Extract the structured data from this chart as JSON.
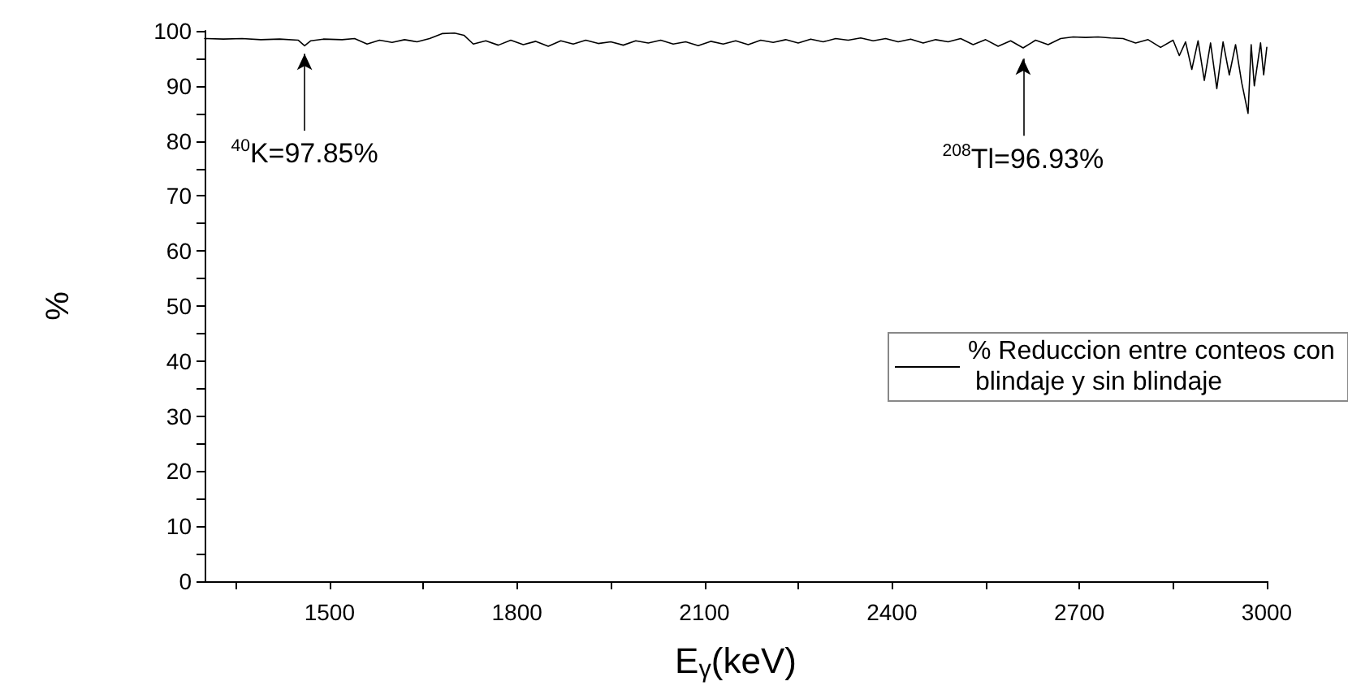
{
  "chart_data": {
    "type": "line",
    "xlabel": "E$_{γ}$(keV)",
    "ylabel": "%",
    "annotations": [
      {
        "text": "$^{40}$K=97.85%",
        "x": 1460,
        "y": 97.85
      },
      {
        "text": "$^{208}$Tl=96.93%",
        "x": 2610,
        "y": 96.93
      }
    ],
    "x": [
      1300,
      1330,
      1360,
      1390,
      1420,
      1450,
      1460,
      1470,
      1490,
      1520,
      1540,
      1560,
      1580,
      1600,
      1620,
      1640,
      1660,
      1680,
      1700,
      1715,
      1730,
      1750,
      1770,
      1790,
      1810,
      1830,
      1850,
      1870,
      1890,
      1910,
      1930,
      1950,
      1970,
      1990,
      2010,
      2030,
      2050,
      2070,
      2090,
      2110,
      2130,
      2150,
      2170,
      2190,
      2210,
      2230,
      2250,
      2270,
      2290,
      2310,
      2330,
      2350,
      2370,
      2390,
      2410,
      2430,
      2450,
      2470,
      2490,
      2510,
      2530,
      2550,
      2570,
      2590,
      2610,
      2630,
      2650,
      2670,
      2690,
      2710,
      2730,
      2750,
      2770,
      2790,
      2810,
      2830,
      2850,
      2860,
      2870,
      2880,
      2890,
      2900,
      2910,
      2920,
      2930,
      2940,
      2950,
      2960,
      2970,
      2975,
      2980,
      2990,
      2995,
      3000
    ],
    "series": [
      {
        "name": "% Reduccion entre conteos con blindaje y sin blindaje",
        "color": "#000000",
        "values": [
          98.6,
          98.5,
          98.6,
          98.4,
          98.5,
          98.3,
          97.3,
          98.2,
          98.5,
          98.4,
          98.6,
          97.6,
          98.3,
          97.9,
          98.4,
          98.0,
          98.6,
          99.5,
          99.6,
          99.2,
          97.6,
          98.2,
          97.4,
          98.3,
          97.5,
          98.1,
          97.2,
          98.2,
          97.6,
          98.3,
          97.7,
          98.0,
          97.4,
          98.2,
          97.8,
          98.3,
          97.6,
          98.0,
          97.3,
          98.1,
          97.6,
          98.2,
          97.5,
          98.3,
          97.9,
          98.4,
          97.8,
          98.5,
          98.0,
          98.6,
          98.3,
          98.7,
          98.2,
          98.6,
          98.0,
          98.5,
          97.8,
          98.4,
          98.0,
          98.6,
          97.5,
          98.4,
          97.2,
          98.2,
          96.9,
          98.3,
          97.5,
          98.6,
          98.9,
          98.8,
          98.9,
          98.7,
          98.6,
          97.8,
          98.4,
          97.0,
          98.3,
          95.5,
          98.0,
          93.0,
          98.2,
          91.0,
          97.8,
          89.5,
          98.0,
          92.0,
          97.5,
          90.5,
          85.0,
          97.5,
          90.0,
          97.8,
          92.0,
          97.0
        ]
      }
    ],
    "xlim": [
      1300,
      3000
    ],
    "xticks": [
      {
        "value": 1350,
        "label": null
      },
      1500,
      {
        "value": 1650,
        "label": null
      },
      1800,
      {
        "value": 1950,
        "label": null
      },
      2100,
      {
        "value": 2250,
        "label": null
      },
      2400,
      {
        "value": 2550,
        "label": null
      },
      2700,
      {
        "value": 2850,
        "label": null
      },
      3000
    ],
    "ylim": [
      0,
      100
    ],
    "yticks": [
      0,
      {
        "value": 5,
        "label": null
      },
      10,
      {
        "value": 15,
        "label": null
      },
      20,
      {
        "value": 25,
        "label": null
      },
      30,
      {
        "value": 35,
        "label": null
      },
      40,
      {
        "value": 45,
        "label": null
      },
      50,
      {
        "value": 55,
        "label": null
      },
      60,
      {
        "value": 65,
        "label": null
      },
      70,
      {
        "value": 75,
        "label": null
      },
      80,
      {
        "value": 85,
        "label": null
      },
      90,
      {
        "value": 95,
        "label": null
      },
      100
    ],
    "grid": false,
    "legend": "right",
    "marker": "none",
    "line_style": "solid"
  }
}
